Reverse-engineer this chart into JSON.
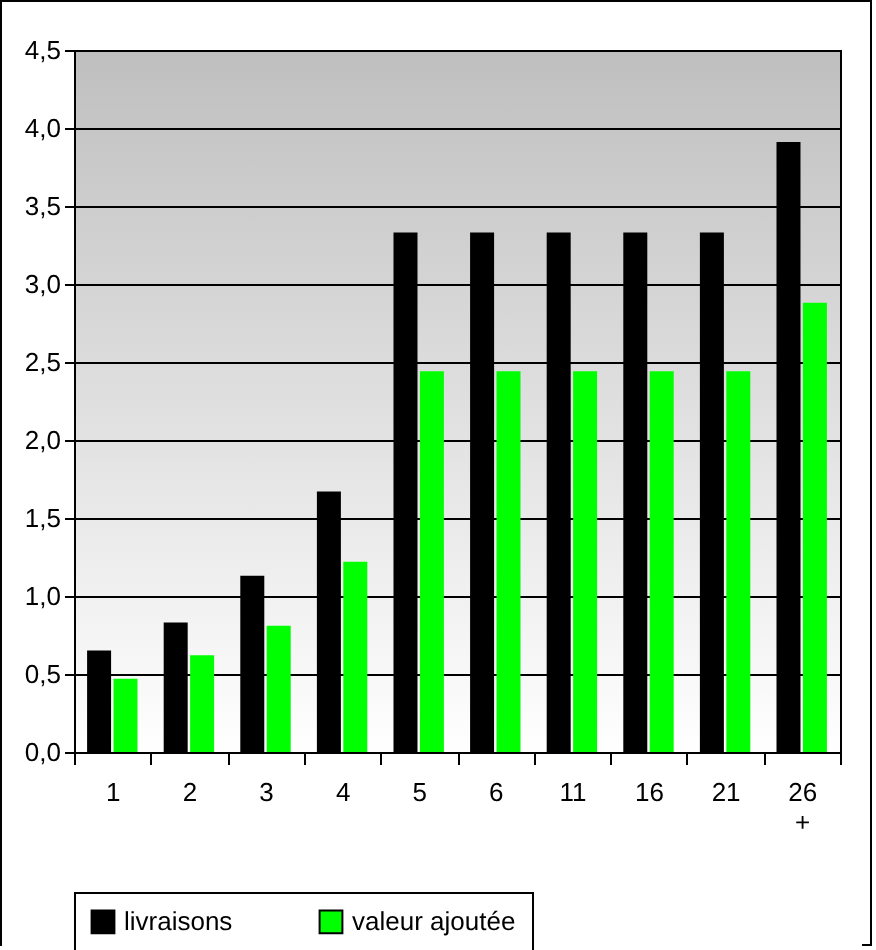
{
  "chart_data": {
    "type": "bar",
    "categories": [
      "1",
      "2",
      "3",
      "4",
      "5",
      "6",
      "11",
      "16",
      "21",
      "26 +"
    ],
    "series": [
      {
        "name": "livraisons",
        "color": "#000000",
        "values": [
          0.65,
          0.83,
          1.13,
          1.67,
          3.33,
          3.33,
          3.33,
          3.33,
          3.33,
          3.91
        ]
      },
      {
        "name": "valeur ajoutée",
        "color": "#00ff00",
        "values": [
          0.47,
          0.62,
          0.81,
          1.22,
          2.44,
          2.44,
          2.44,
          2.44,
          2.44,
          2.88
        ]
      }
    ],
    "ylim": [
      0,
      4.5
    ],
    "yticks": [
      {
        "value": 0,
        "label": "0,0"
      },
      {
        "value": 0.5,
        "label": "0,5"
      },
      {
        "value": 1,
        "label": "1,0"
      },
      {
        "value": 1.5,
        "label": "1,5"
      },
      {
        "value": 2,
        "label": "2,0"
      },
      {
        "value": 2.5,
        "label": "2,5"
      },
      {
        "value": 3,
        "label": "3,0"
      },
      {
        "value": 3.5,
        "label": "3,5"
      },
      {
        "value": 4,
        "label": "4,0"
      },
      {
        "value": 4.5,
        "label": "4,5"
      }
    ],
    "grid": "y",
    "legend": "bottom"
  }
}
